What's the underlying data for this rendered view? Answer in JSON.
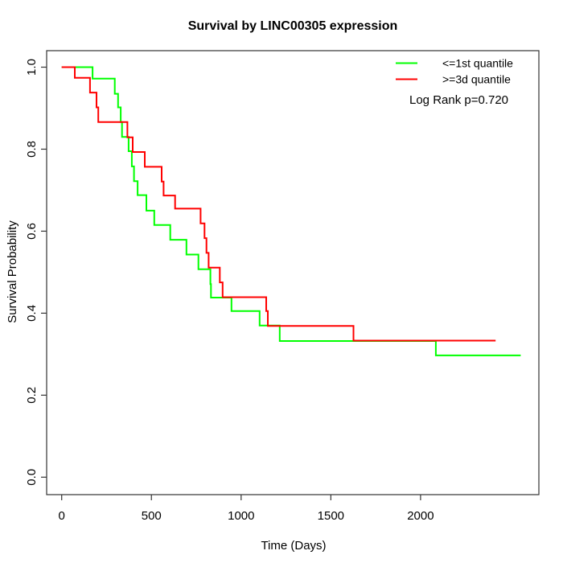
{
  "title": "Survival by LINC00305 expression",
  "chart_data": {
    "type": "line",
    "variant": "kaplan_meier_step",
    "title": "Survival by LINC00305 expression",
    "xlabel": "Time (Days)",
    "ylabel": "Survival Probability",
    "xlim": [
      0,
      2660
    ],
    "ylim": [
      0.0,
      1.0
    ],
    "x_ticks": [
      0,
      500,
      1000,
      1500,
      2000
    ],
    "y_ticks": [
      "0.0",
      "0.2",
      "0.4",
      "0.6",
      "0.8",
      "1.0"
    ],
    "grid": false,
    "legend_position": "top-right",
    "log_rank_p": "0.720",
    "annotation": "Log Rank p=0.720",
    "legend": {
      "items": [
        {
          "label": "<=1st quantile",
          "color": "#00ff00"
        },
        {
          "label": ">=3d quantile",
          "color": "#ff0000"
        }
      ]
    },
    "series": [
      {
        "name": "<=1st quantile",
        "color": "#00ff00",
        "end_time": 2558,
        "points": [
          [
            0,
            1.0
          ],
          [
            172,
            0.972
          ],
          [
            296,
            0.935
          ],
          [
            314,
            0.902
          ],
          [
            329,
            0.866
          ],
          [
            336,
            0.83
          ],
          [
            373,
            0.795
          ],
          [
            391,
            0.758
          ],
          [
            403,
            0.722
          ],
          [
            423,
            0.688
          ],
          [
            472,
            0.65
          ],
          [
            516,
            0.615
          ],
          [
            605,
            0.579
          ],
          [
            695,
            0.543
          ],
          [
            762,
            0.507
          ],
          [
            829,
            0.471
          ],
          [
            832,
            0.438
          ],
          [
            946,
            0.405
          ],
          [
            1103,
            0.37
          ],
          [
            1215,
            0.332
          ],
          [
            2085,
            0.297
          ]
        ]
      },
      {
        "name": ">=3d quantile",
        "color": "#ff0000",
        "end_time": 2418,
        "points": [
          [
            0,
            1.0
          ],
          [
            73,
            0.974
          ],
          [
            158,
            0.938
          ],
          [
            194,
            0.902
          ],
          [
            204,
            0.866
          ],
          [
            366,
            0.829
          ],
          [
            396,
            0.793
          ],
          [
            463,
            0.757
          ],
          [
            557,
            0.721
          ],
          [
            568,
            0.687
          ],
          [
            632,
            0.655
          ],
          [
            774,
            0.619
          ],
          [
            796,
            0.583
          ],
          [
            807,
            0.547
          ],
          [
            819,
            0.511
          ],
          [
            881,
            0.475
          ],
          [
            897,
            0.439
          ],
          [
            1140,
            0.405
          ],
          [
            1149,
            0.369
          ],
          [
            1626,
            0.333
          ]
        ]
      }
    ]
  }
}
